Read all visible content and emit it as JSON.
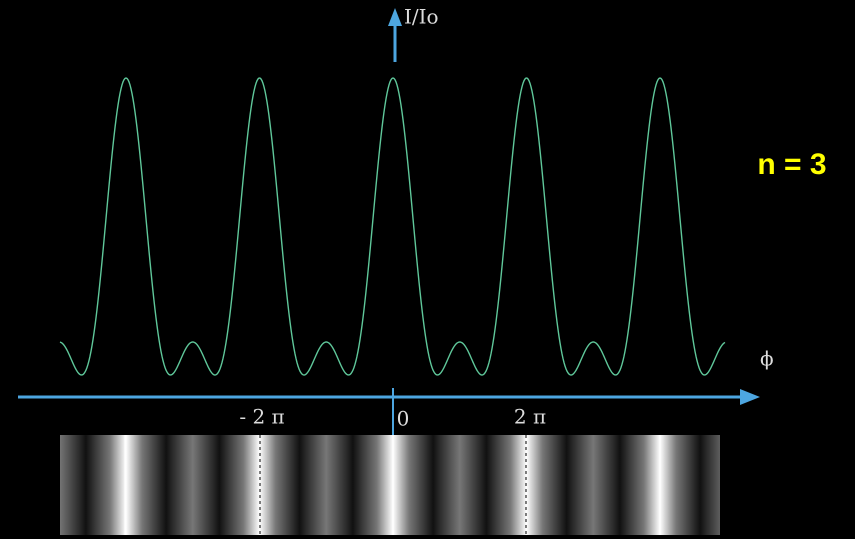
{
  "axis": {
    "y_label": "I/Io",
    "x_label": "ϕ",
    "ticks": [
      "- 2 π",
      "0",
      "2 π"
    ]
  },
  "annotation": "n = 3"
}
